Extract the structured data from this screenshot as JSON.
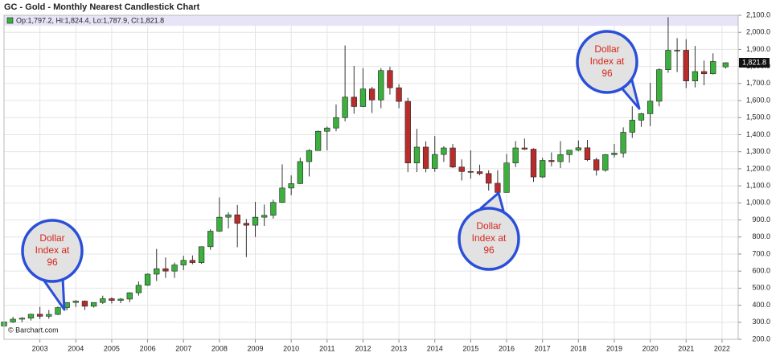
{
  "chart_data": {
    "type": "candlestick",
    "title": "GC - Gold - Monthly Nearest Candlestick Chart",
    "ohlc_label": "Op:1,797.2, Hi:1,824.4, Lo:1,787.9, Cl:1,821.8",
    "source": "© Barchart.com",
    "up_color": "#3cb03c",
    "down_color": "#b82c2c",
    "grid": true,
    "xlim": [
      2002.0,
      2022.45
    ],
    "xticks": [
      2003,
      2004,
      2005,
      2006,
      2007,
      2008,
      2009,
      2010,
      2011,
      2012,
      2013,
      2014,
      2015,
      2016,
      2017,
      2018,
      2019,
      2020,
      2021,
      2022
    ],
    "ylim": [
      200,
      2100
    ],
    "yticks": [
      {
        "value": 200,
        "label": "200.0"
      },
      {
        "value": 300,
        "label": "300.0"
      },
      {
        "value": 400,
        "label": "400.0"
      },
      {
        "value": 500,
        "label": "500.0"
      },
      {
        "value": 600,
        "label": "600.0"
      },
      {
        "value": 700,
        "label": "700.0"
      },
      {
        "value": 800,
        "label": "800.0"
      },
      {
        "value": 900,
        "label": "900.0"
      },
      {
        "value": 1000,
        "label": "1,000.0"
      },
      {
        "value": 1100,
        "label": "1,100.0"
      },
      {
        "value": 1200,
        "label": "1,200.0"
      },
      {
        "value": 1300,
        "label": "1,300.0"
      },
      {
        "value": 1400,
        "label": "1,400.0"
      },
      {
        "value": 1500,
        "label": "1,500.0"
      },
      {
        "value": 1600,
        "label": "1,600.0"
      },
      {
        "value": 1700,
        "label": "1,700.0"
      },
      {
        "value": 1800,
        "label": "1,800.0"
      },
      {
        "value": 1900,
        "label": "1,900.0"
      },
      {
        "value": 2000,
        "label": "2,000.0"
      },
      {
        "value": 2100,
        "label": "2,100.0"
      }
    ],
    "last_price": {
      "value": 1821.8,
      "label": "1,821.8"
    },
    "annotations": [
      [
        "Dollar",
        "Index at",
        "96"
      ],
      [
        "Dollar",
        "Index at",
        "96"
      ],
      [
        "Dollar",
        "Index at",
        "96"
      ]
    ],
    "x": [
      2002.0,
      2002.25,
      2002.5,
      2002.75,
      2003.0,
      2003.25,
      2003.5,
      2003.75,
      2004.0,
      2004.25,
      2004.5,
      2004.75,
      2005.0,
      2005.25,
      2005.5,
      2005.75,
      2006.0,
      2006.25,
      2006.5,
      2006.75,
      2007.0,
      2007.25,
      2007.5,
      2007.75,
      2008.0,
      2008.25,
      2008.5,
      2008.75,
      2009.0,
      2009.25,
      2009.5,
      2009.75,
      2010.0,
      2010.25,
      2010.5,
      2010.75,
      2011.0,
      2011.25,
      2011.5,
      2011.75,
      2012.0,
      2012.25,
      2012.5,
      2012.75,
      2013.0,
      2013.25,
      2013.5,
      2013.75,
      2014.0,
      2014.25,
      2014.5,
      2014.75,
      2015.0,
      2015.25,
      2015.5,
      2015.75,
      2016.0,
      2016.25,
      2016.5,
      2016.75,
      2017.0,
      2017.25,
      2017.5,
      2017.75,
      2018.0,
      2018.25,
      2018.5,
      2018.75,
      2019.0,
      2019.25,
      2019.5,
      2019.75,
      2020.0,
      2020.25,
      2020.5,
      2020.75,
      2021.0,
      2021.25,
      2021.5,
      2021.75,
      2022.1
    ],
    "open": [
      278,
      302,
      318,
      324,
      347,
      335,
      346,
      386,
      416,
      424,
      394,
      416,
      438,
      428,
      436,
      473,
      517,
      582,
      614,
      600,
      636,
      663,
      650,
      743,
      834,
      916,
      930,
      880,
      869,
      916,
      927,
      1003,
      1087,
      1113,
      1242,
      1307,
      1420,
      1439,
      1500,
      1620,
      1565,
      1668,
      1604,
      1776,
      1675,
      1595,
      1234,
      1327,
      1202,
      1284,
      1322,
      1210,
      1184,
      1183,
      1172,
      1115,
      1061,
      1234,
      1322,
      1315,
      1152,
      1249,
      1242,
      1283,
      1309,
      1323,
      1253,
      1192,
      1283,
      1292,
      1414,
      1485,
      1523,
      1596,
      1781,
      1895,
      1895,
      1715,
      1770,
      1757,
      1797.2
    ],
    "high": [
      305,
      332,
      330,
      350,
      390,
      372,
      392,
      417,
      430,
      428,
      416,
      456,
      446,
      442,
      476,
      540,
      586,
      730,
      680,
      650,
      690,
      692,
      745,
      845,
      1032,
      945,
      988,
      905,
      1006,
      990,
      1019,
      1226,
      1161,
      1265,
      1315,
      1424,
      1448,
      1577,
      1923,
      1803,
      1790,
      1680,
      1790,
      1798,
      1696,
      1616,
      1434,
      1361,
      1392,
      1332,
      1345,
      1255,
      1308,
      1224,
      1191,
      1191,
      1287,
      1362,
      1377,
      1320,
      1264,
      1296,
      1362,
      1310,
      1366,
      1369,
      1265,
      1287,
      1346,
      1443,
      1566,
      1528,
      1704,
      1789,
      2089,
      1966,
      1960,
      1920,
      1834,
      1877,
      1824.4
    ],
    "low": [
      277,
      296,
      300,
      310,
      319,
      320,
      342,
      370,
      390,
      372,
      386,
      408,
      410,
      412,
      418,
      456,
      514,
      542,
      560,
      560,
      606,
      640,
      642,
      725,
      830,
      850,
      740,
      682,
      800,
      865,
      908,
      1000,
      1045,
      1110,
      1155,
      1306,
      1308,
      1420,
      1478,
      1523,
      1562,
      1527,
      1555,
      1635,
      1555,
      1180,
      1180,
      1179,
      1182,
      1240,
      1204,
      1131,
      1142,
      1162,
      1072,
      1046,
      1061,
      1210,
      1310,
      1123,
      1146,
      1214,
      1204,
      1236,
      1302,
      1245,
      1160,
      1182,
      1266,
      1266,
      1381,
      1446,
      1450,
      1566,
      1763,
      1767,
      1673,
      1677,
      1690,
      1753,
      1787.9
    ],
    "close": [
      302,
      318,
      324,
      347,
      335,
      346,
      386,
      416,
      424,
      394,
      416,
      438,
      428,
      436,
      473,
      517,
      582,
      614,
      600,
      636,
      663,
      650,
      743,
      834,
      916,
      930,
      880,
      869,
      916,
      927,
      1003,
      1087,
      1113,
      1242,
      1307,
      1420,
      1439,
      1500,
      1620,
      1565,
      1668,
      1604,
      1776,
      1675,
      1595,
      1234,
      1327,
      1202,
      1284,
      1322,
      1210,
      1184,
      1183,
      1172,
      1115,
      1061,
      1234,
      1322,
      1315,
      1152,
      1249,
      1242,
      1283,
      1309,
      1323,
      1253,
      1192,
      1283,
      1292,
      1414,
      1485,
      1523,
      1596,
      1781,
      1895,
      1895,
      1715,
      1770,
      1757,
      1829,
      1821.8
    ]
  }
}
